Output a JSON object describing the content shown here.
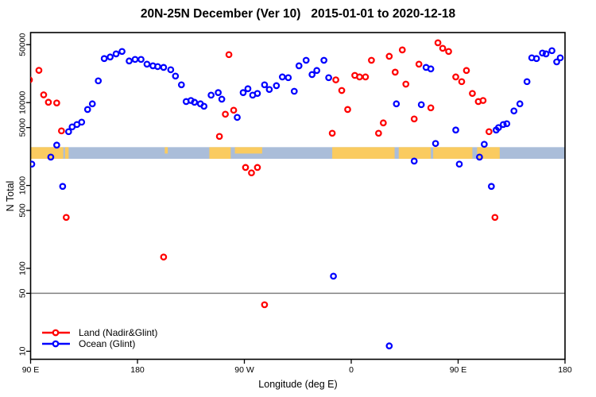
{
  "title": "20N-25N December (Ver 10)   2015-01-01 to 2020-12-18",
  "chart_data": {
    "type": "scatter",
    "title": "20N-25N December (Ver 10)   2015-01-01 to 2020-12-18",
    "xlabel": "Longitude (deg E)",
    "ylabel": "N Total",
    "x_axis": {
      "min": 90,
      "max": 540,
      "tick_values": [
        90,
        180,
        270,
        360,
        450,
        540
      ],
      "tick_labels": [
        "90 E",
        "180",
        "90 W",
        "0",
        "90 E",
        "180"
      ]
    },
    "y_axis": {
      "scale": "log",
      "min": 8,
      "max": 70000,
      "tick_values": [
        10,
        50,
        100,
        500,
        1000,
        5000,
        10000,
        50000
      ],
      "tick_labels": [
        "10",
        "50",
        "100",
        "500",
        "1000",
        "5000",
        "10000",
        "50000"
      ]
    },
    "reference_line": {
      "y": 50,
      "color": "#808080"
    },
    "map_band": {
      "y_range": [
        2100,
        2900
      ],
      "ocean_color": "#AABDD9",
      "land_color": "#FACB60",
      "land_segments": [
        {
          "from": 90,
          "to": 117.5
        },
        {
          "from": 119,
          "to": 122
        },
        {
          "from": 203,
          "to": 205.5,
          "partial": true
        },
        {
          "from": 240.5,
          "to": 258.5
        },
        {
          "from": 262,
          "to": 285,
          "partial": true
        },
        {
          "from": 344,
          "to": 396.5
        },
        {
          "from": 400,
          "to": 427
        },
        {
          "from": 429,
          "to": 462
        },
        {
          "from": 466,
          "to": 485
        }
      ]
    },
    "series": [
      {
        "name": "Land (Nadir&Glint)",
        "color": "#FF0000",
        "marker": "open-circle",
        "points": [
          [
            89,
            18800
          ],
          [
            97,
            24500
          ],
          [
            101,
            12400
          ],
          [
            105,
            10100
          ],
          [
            112,
            9900
          ],
          [
            116,
            4560
          ],
          [
            120,
            412
          ],
          [
            202,
            137
          ],
          [
            249,
            3910
          ],
          [
            254,
            7240
          ],
          [
            257,
            37900
          ],
          [
            261,
            8090
          ],
          [
            271,
            1650
          ],
          [
            276,
            1420
          ],
          [
            281,
            1650
          ],
          [
            287,
            36.4
          ],
          [
            344,
            4270
          ],
          [
            347,
            18800
          ],
          [
            352,
            14000
          ],
          [
            357,
            8260
          ],
          [
            363,
            21300
          ],
          [
            367,
            20400
          ],
          [
            372,
            20400
          ],
          [
            377,
            32400
          ],
          [
            383,
            4270
          ],
          [
            387,
            5690
          ],
          [
            392,
            36200
          ],
          [
            397,
            23300
          ],
          [
            403,
            43200
          ],
          [
            406,
            16700
          ],
          [
            413,
            6350
          ],
          [
            417,
            29100
          ],
          [
            427,
            8650
          ],
          [
            433,
            52700
          ],
          [
            437,
            45200
          ],
          [
            442,
            41400
          ],
          [
            448,
            20400
          ],
          [
            453,
            17900
          ],
          [
            457,
            24400
          ],
          [
            462,
            12900
          ],
          [
            467,
            10300
          ],
          [
            471,
            10600
          ],
          [
            476,
            4460
          ],
          [
            481,
            412
          ]
        ]
      },
      {
        "name": "Ocean (Glint)",
        "color": "#0000FF",
        "marker": "open-circle",
        "points": [
          [
            91,
            1810
          ],
          [
            107,
            2200
          ],
          [
            112,
            3070
          ],
          [
            117,
            975
          ],
          [
            122,
            4460
          ],
          [
            125,
            5090
          ],
          [
            129,
            5440
          ],
          [
            133,
            5810
          ],
          [
            138,
            8260
          ],
          [
            142,
            9660
          ],
          [
            147,
            18300
          ],
          [
            152,
            34000
          ],
          [
            157,
            35500
          ],
          [
            162,
            38700
          ],
          [
            167,
            41400
          ],
          [
            173,
            31800
          ],
          [
            178,
            33200
          ],
          [
            183,
            33200
          ],
          [
            188,
            29100
          ],
          [
            193,
            27800
          ],
          [
            197,
            27200
          ],
          [
            202,
            26600
          ],
          [
            208,
            24900
          ],
          [
            212,
            20900
          ],
          [
            217,
            16400
          ],
          [
            221,
            10300
          ],
          [
            225,
            10600
          ],
          [
            228,
            10100
          ],
          [
            233,
            9660
          ],
          [
            236,
            9040
          ],
          [
            242,
            12300
          ],
          [
            248,
            13200
          ],
          [
            251,
            11000
          ],
          [
            264,
            6630
          ],
          [
            269,
            13200
          ],
          [
            273,
            14700
          ],
          [
            277,
            12300
          ],
          [
            281,
            12900
          ],
          [
            287,
            16400
          ],
          [
            291,
            14400
          ],
          [
            297,
            16000
          ],
          [
            302,
            20400
          ],
          [
            307,
            20000
          ],
          [
            312,
            13700
          ],
          [
            316,
            27800
          ],
          [
            322,
            32400
          ],
          [
            327,
            21800
          ],
          [
            331,
            24400
          ],
          [
            337,
            32400
          ],
          [
            341,
            20000
          ],
          [
            345,
            80.5
          ],
          [
            392,
            11.6
          ],
          [
            398,
            9660
          ],
          [
            413,
            1970
          ],
          [
            419,
            9440
          ],
          [
            423,
            26600
          ],
          [
            427,
            25500
          ],
          [
            431,
            3210
          ],
          [
            448,
            4670
          ],
          [
            451,
            1810
          ],
          [
            468,
            2200
          ],
          [
            472,
            3140
          ],
          [
            478,
            975
          ],
          [
            482,
            4670
          ],
          [
            484,
            4990
          ],
          [
            488,
            5440
          ],
          [
            491,
            5560
          ],
          [
            497,
            7930
          ],
          [
            502,
            9660
          ],
          [
            508,
            17900
          ],
          [
            512,
            34700
          ],
          [
            516,
            34000
          ],
          [
            521,
            39600
          ],
          [
            524,
            38700
          ],
          [
            529,
            42300
          ],
          [
            533,
            31000
          ],
          [
            536,
            34700
          ]
        ]
      }
    ],
    "legend": {
      "position": "bottom-left"
    }
  },
  "layout_colors": {
    "axis": "#000000",
    "background": "#FFFFFF"
  }
}
